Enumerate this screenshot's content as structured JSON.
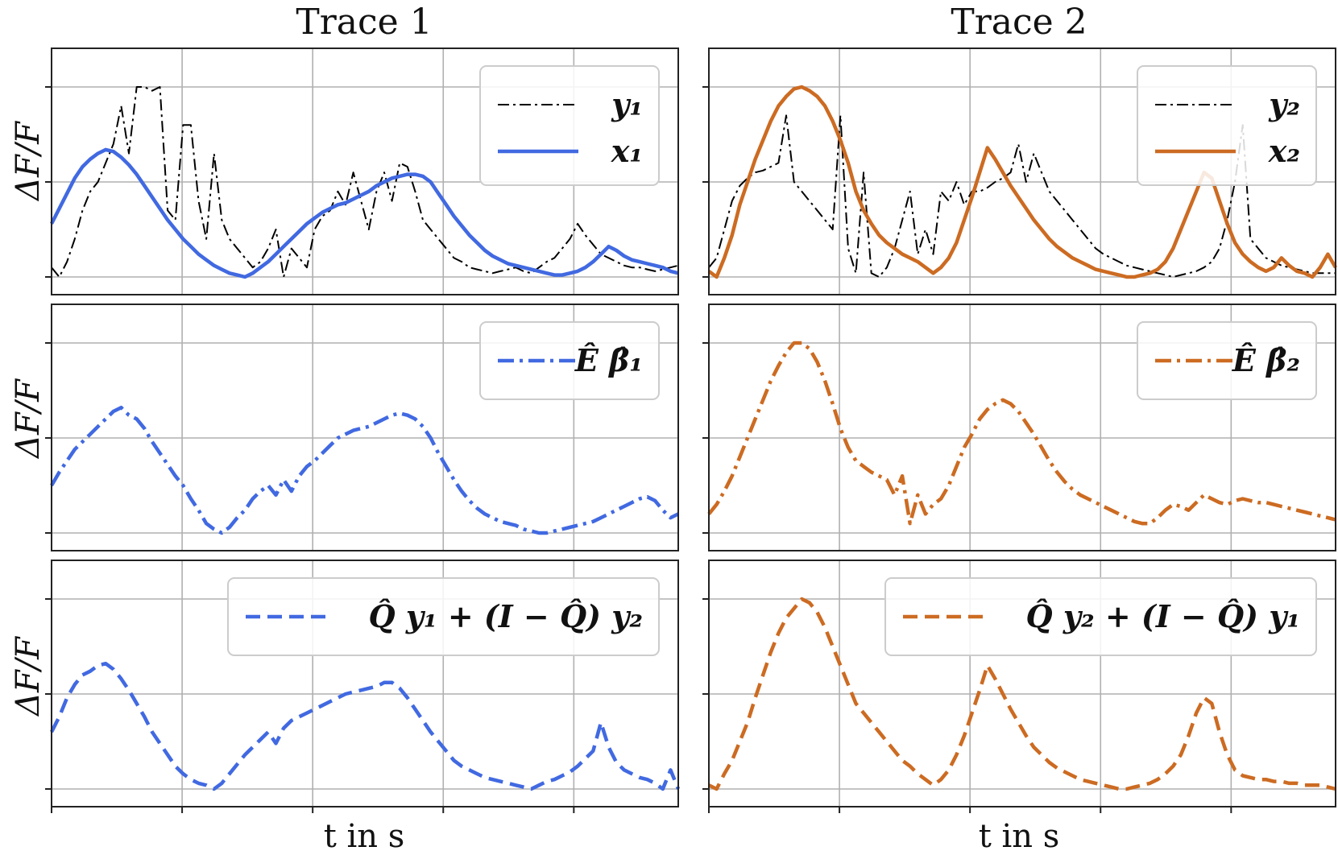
{
  "columns": [
    {
      "title": "Trace 1",
      "color": "#4169e1"
    },
    {
      "title": "Trace 2",
      "color": "#cc6b22"
    }
  ],
  "ylabel": "ΔF/F",
  "xlabel": "t in s",
  "chart_data": [
    {
      "type": "line",
      "row": 0,
      "col": 0,
      "ylim": [
        0,
        1
      ],
      "series": [
        {
          "name": "y₁",
          "style": "dashdot",
          "color": "#000000",
          "values": [
            0.05,
            0.0,
            0.08,
            0.2,
            0.35,
            0.45,
            0.5,
            0.6,
            0.7,
            0.9,
            0.65,
            1.0,
            1.0,
            0.98,
            1.0,
            0.35,
            0.3,
            0.8,
            0.8,
            0.4,
            0.2,
            0.65,
            0.3,
            0.2,
            0.15,
            0.1,
            0.05,
            0.08,
            0.15,
            0.25,
            0.0,
            0.15,
            0.1,
            0.05,
            0.25,
            0.32,
            0.35,
            0.45,
            0.38,
            0.55,
            0.4,
            0.25,
            0.45,
            0.55,
            0.4,
            0.6,
            0.58,
            0.45,
            0.3,
            0.25,
            0.2,
            0.15,
            0.1,
            0.08,
            0.05,
            0.04,
            0.03,
            0.02,
            0.03,
            0.04,
            0.05,
            0.03,
            0.02,
            0.05,
            0.08,
            0.1,
            0.15,
            0.2,
            0.28,
            0.22,
            0.17,
            0.12,
            0.1,
            0.08,
            0.06,
            0.05,
            0.05,
            0.04,
            0.03,
            0.04,
            0.05,
            0.06
          ]
        },
        {
          "name": "x₁",
          "style": "solid",
          "color": "#4169e1",
          "values": [
            0.28,
            0.36,
            0.44,
            0.52,
            0.58,
            0.62,
            0.65,
            0.67,
            0.66,
            0.63,
            0.59,
            0.54,
            0.48,
            0.42,
            0.36,
            0.3,
            0.25,
            0.2,
            0.16,
            0.12,
            0.09,
            0.06,
            0.04,
            0.02,
            0.01,
            0.0,
            0.02,
            0.05,
            0.08,
            0.12,
            0.16,
            0.2,
            0.24,
            0.28,
            0.31,
            0.34,
            0.36,
            0.38,
            0.39,
            0.41,
            0.43,
            0.45,
            0.48,
            0.5,
            0.52,
            0.53,
            0.54,
            0.54,
            0.53,
            0.5,
            0.44,
            0.38,
            0.32,
            0.27,
            0.22,
            0.18,
            0.14,
            0.11,
            0.09,
            0.07,
            0.06,
            0.05,
            0.04,
            0.03,
            0.02,
            0.01,
            0.01,
            0.02,
            0.03,
            0.05,
            0.08,
            0.12,
            0.16,
            0.14,
            0.11,
            0.09,
            0.08,
            0.07,
            0.06,
            0.05,
            0.03,
            0.02
          ]
        }
      ],
      "legend": [
        "y₁",
        "x₁"
      ]
    },
    {
      "type": "line",
      "row": 0,
      "col": 1,
      "ylim": [
        0,
        1
      ],
      "series": [
        {
          "name": "y₂",
          "style": "dashdot",
          "color": "#000000",
          "values": [
            0.05,
            0.1,
            0.25,
            0.4,
            0.48,
            0.52,
            0.55,
            0.56,
            0.58,
            0.6,
            0.85,
            0.5,
            0.45,
            0.4,
            0.35,
            0.3,
            0.25,
            0.85,
            0.15,
            0.02,
            0.55,
            0.02,
            0.0,
            0.05,
            0.15,
            0.3,
            0.45,
            0.12,
            0.25,
            0.12,
            0.45,
            0.4,
            0.5,
            0.38,
            0.45,
            0.45,
            0.47,
            0.5,
            0.52,
            0.55,
            0.7,
            0.5,
            0.65,
            0.55,
            0.45,
            0.4,
            0.35,
            0.3,
            0.25,
            0.2,
            0.15,
            0.12,
            0.1,
            0.08,
            0.06,
            0.05,
            0.04,
            0.03,
            0.02,
            0.01,
            0.0,
            0.01,
            0.02,
            0.03,
            0.05,
            0.08,
            0.15,
            0.3,
            0.5,
            0.8,
            0.2,
            0.15,
            0.1,
            0.08,
            0.06,
            0.05,
            0.04,
            0.03,
            0.02,
            0.02,
            0.02,
            0.02
          ]
        },
        {
          "name": "x₂",
          "style": "solid",
          "color": "#cc6b22",
          "values": [
            0.03,
            0.0,
            0.1,
            0.22,
            0.38,
            0.5,
            0.62,
            0.72,
            0.82,
            0.9,
            0.95,
            0.99,
            1.0,
            0.98,
            0.95,
            0.9,
            0.82,
            0.72,
            0.6,
            0.45,
            0.35,
            0.28,
            0.22,
            0.18,
            0.15,
            0.12,
            0.1,
            0.08,
            0.05,
            0.02,
            0.05,
            0.1,
            0.18,
            0.3,
            0.42,
            0.55,
            0.68,
            0.62,
            0.55,
            0.48,
            0.42,
            0.36,
            0.3,
            0.25,
            0.2,
            0.16,
            0.13,
            0.1,
            0.08,
            0.06,
            0.04,
            0.03,
            0.02,
            0.01,
            0.0,
            0.0,
            0.01,
            0.02,
            0.04,
            0.08,
            0.15,
            0.25,
            0.35,
            0.45,
            0.55,
            0.52,
            0.4,
            0.28,
            0.18,
            0.12,
            0.08,
            0.05,
            0.03,
            0.05,
            0.1,
            0.06,
            0.03,
            0.02,
            0.0,
            0.05,
            0.12,
            0.05
          ]
        }
      ],
      "legend": [
        "y₂",
        "x₂"
      ]
    },
    {
      "type": "line",
      "row": 1,
      "col": 0,
      "ylim": [
        0,
        1
      ],
      "series": [
        {
          "name": "Ê β̂₁",
          "style": "dashdot",
          "color": "#4169e1",
          "values": [
            0.25,
            0.32,
            0.38,
            0.44,
            0.48,
            0.52,
            0.56,
            0.6,
            0.64,
            0.66,
            0.62,
            0.6,
            0.55,
            0.48,
            0.42,
            0.36,
            0.3,
            0.25,
            0.18,
            0.12,
            0.05,
            0.02,
            0.0,
            0.03,
            0.08,
            0.12,
            0.18,
            0.22,
            0.25,
            0.2,
            0.28,
            0.22,
            0.3,
            0.35,
            0.38,
            0.42,
            0.46,
            0.5,
            0.52,
            0.54,
            0.55,
            0.56,
            0.58,
            0.6,
            0.62,
            0.63,
            0.62,
            0.6,
            0.56,
            0.5,
            0.42,
            0.35,
            0.28,
            0.22,
            0.17,
            0.13,
            0.1,
            0.08,
            0.06,
            0.05,
            0.04,
            0.02,
            0.01,
            0.0,
            0.0,
            0.01,
            0.02,
            0.03,
            0.04,
            0.05,
            0.06,
            0.08,
            0.1,
            0.12,
            0.14,
            0.16,
            0.18,
            0.19,
            0.17,
            0.12,
            0.08,
            0.1
          ]
        }
      ],
      "legend": [
        "Ê β̂₁"
      ]
    },
    {
      "type": "line",
      "row": 1,
      "col": 1,
      "ylim": [
        0,
        1
      ],
      "series": [
        {
          "name": "Ê β̂₂",
          "style": "dashdot",
          "color": "#cc6b22",
          "values": [
            0.1,
            0.15,
            0.22,
            0.3,
            0.4,
            0.5,
            0.6,
            0.7,
            0.8,
            0.88,
            0.95,
            1.0,
            1.0,
            0.97,
            0.9,
            0.8,
            0.68,
            0.55,
            0.45,
            0.38,
            0.35,
            0.32,
            0.3,
            0.28,
            0.2,
            0.3,
            0.05,
            0.2,
            0.1,
            0.15,
            0.18,
            0.25,
            0.35,
            0.45,
            0.52,
            0.6,
            0.65,
            0.68,
            0.7,
            0.68,
            0.64,
            0.58,
            0.52,
            0.45,
            0.38,
            0.32,
            0.27,
            0.23,
            0.2,
            0.18,
            0.16,
            0.14,
            0.12,
            0.1,
            0.08,
            0.06,
            0.05,
            0.05,
            0.08,
            0.12,
            0.15,
            0.14,
            0.12,
            0.16,
            0.2,
            0.18,
            0.16,
            0.15,
            0.17,
            0.18,
            0.17,
            0.16,
            0.16,
            0.15,
            0.14,
            0.13,
            0.12,
            0.11,
            0.1,
            0.09,
            0.08,
            0.07
          ]
        }
      ],
      "legend": [
        "Ê β̂₂"
      ]
    },
    {
      "type": "line",
      "row": 2,
      "col": 0,
      "ylim": [
        0,
        1
      ],
      "series": [
        {
          "name": "Q̂ y₁ + (I − Q̂) y₂",
          "style": "dashed",
          "color": "#4169e1",
          "values": [
            0.3,
            0.38,
            0.48,
            0.55,
            0.6,
            0.62,
            0.65,
            0.66,
            0.63,
            0.58,
            0.52,
            0.45,
            0.38,
            0.3,
            0.24,
            0.18,
            0.12,
            0.08,
            0.05,
            0.03,
            0.02,
            0.0,
            0.03,
            0.08,
            0.13,
            0.18,
            0.22,
            0.26,
            0.3,
            0.24,
            0.32,
            0.36,
            0.38,
            0.4,
            0.42,
            0.44,
            0.46,
            0.48,
            0.5,
            0.51,
            0.52,
            0.53,
            0.54,
            0.56,
            0.56,
            0.53,
            0.48,
            0.42,
            0.36,
            0.3,
            0.25,
            0.2,
            0.15,
            0.12,
            0.1,
            0.08,
            0.06,
            0.05,
            0.04,
            0.03,
            0.02,
            0.01,
            0.0,
            0.02,
            0.04,
            0.05,
            0.07,
            0.09,
            0.12,
            0.16,
            0.2,
            0.35,
            0.22,
            0.14,
            0.1,
            0.08,
            0.06,
            0.05,
            0.03,
            0.0,
            0.1,
            0.0
          ]
        }
      ],
      "legend": [
        "Q̂ y₁ + (I − Q̂) y₂"
      ]
    },
    {
      "type": "line",
      "row": 2,
      "col": 1,
      "ylim": [
        0,
        1
      ],
      "series": [
        {
          "name": "Q̂ y₂ + (I − Q̂) y₁",
          "style": "dashed",
          "color": "#cc6b22",
          "values": [
            0.02,
            0.0,
            0.08,
            0.15,
            0.25,
            0.35,
            0.48,
            0.6,
            0.72,
            0.82,
            0.9,
            0.95,
            1.0,
            0.98,
            0.93,
            0.85,
            0.75,
            0.65,
            0.55,
            0.45,
            0.4,
            0.35,
            0.3,
            0.25,
            0.2,
            0.15,
            0.12,
            0.08,
            0.05,
            0.02,
            0.05,
            0.1,
            0.18,
            0.28,
            0.4,
            0.52,
            0.65,
            0.58,
            0.5,
            0.42,
            0.35,
            0.28,
            0.22,
            0.18,
            0.14,
            0.11,
            0.09,
            0.07,
            0.05,
            0.04,
            0.03,
            0.02,
            0.01,
            0.0,
            0.0,
            0.01,
            0.02,
            0.03,
            0.05,
            0.08,
            0.12,
            0.18,
            0.28,
            0.4,
            0.48,
            0.45,
            0.3,
            0.18,
            0.1,
            0.07,
            0.06,
            0.05,
            0.05,
            0.04,
            0.04,
            0.03,
            0.03,
            0.02,
            0.02,
            0.02,
            0.01,
            0.0
          ]
        }
      ],
      "legend": [
        "Q̂ y₂ + (I − Q̂) y₁"
      ]
    }
  ]
}
